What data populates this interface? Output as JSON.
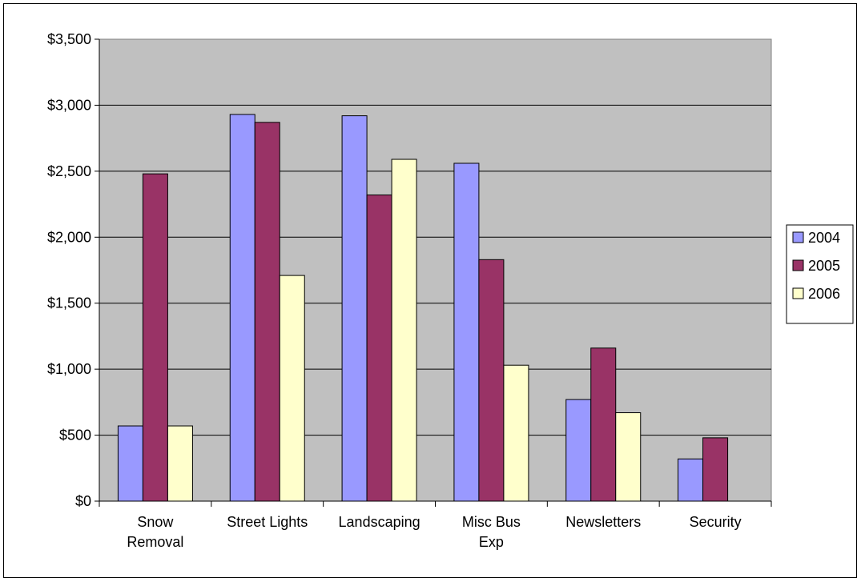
{
  "chart_data": {
    "type": "bar",
    "categories": [
      [
        "Snow",
        "Removal"
      ],
      [
        "Street Lights"
      ],
      [
        "Landscaping"
      ],
      [
        "Misc Bus",
        "Exp"
      ],
      [
        "Newsletters"
      ],
      [
        "Security"
      ]
    ],
    "series": [
      {
        "name": "2004",
        "color": "#9999ff",
        "values": [
          570,
          2930,
          2920,
          2560,
          770,
          320
        ]
      },
      {
        "name": "2005",
        "color": "#993366",
        "values": [
          2480,
          2870,
          2320,
          1830,
          1160,
          480
        ]
      },
      {
        "name": "2006",
        "color": "#ffffcc",
        "values": [
          570,
          1710,
          2590,
          1030,
          670,
          null
        ]
      }
    ],
    "ylim": [
      0,
      3500
    ],
    "y_ticks": [
      {
        "value": 0,
        "label": "$0"
      },
      {
        "value": 500,
        "label": "$500"
      },
      {
        "value": 1000,
        "label": "$1,000"
      },
      {
        "value": 1500,
        "label": "$1,500"
      },
      {
        "value": 2000,
        "label": "$2,000"
      },
      {
        "value": 2500,
        "label": "$2,500"
      },
      {
        "value": 3000,
        "label": "$3,000"
      },
      {
        "value": 3500,
        "label": "$3,500"
      }
    ],
    "title": "",
    "xlabel": "",
    "ylabel": "",
    "plot_background": "#c0c0c0",
    "grid": true,
    "legend_position": "right"
  }
}
